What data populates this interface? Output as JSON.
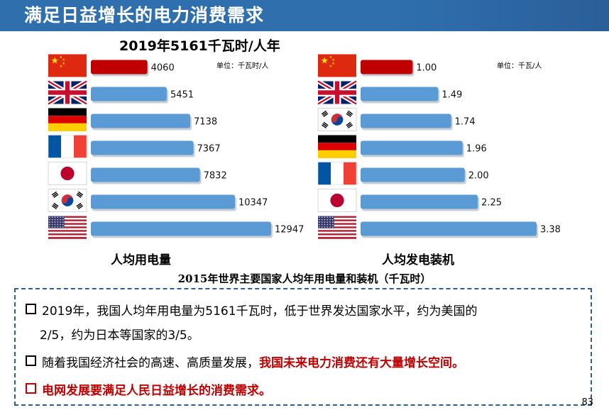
{
  "header": {
    "title": "满足日益增长的电力消费需求"
  },
  "headline": "2019年5161千瓦时/人年",
  "chart_data": [
    {
      "type": "bar",
      "orientation": "horizontal",
      "title": "人均用电量",
      "unit_label": "单位：千瓦时/人",
      "categories": [
        "中国",
        "英国",
        "德国",
        "法国",
        "日本",
        "韩国",
        "美国"
      ],
      "flags": [
        "cn-flag",
        "uk-flag",
        "de-flag",
        "fr-flag",
        "jp-flag",
        "kr-flag",
        "us-flag"
      ],
      "value_labels": [
        "4060",
        "5451",
        "7138",
        "7367",
        "7832",
        "10347",
        "12947"
      ],
      "values": [
        4060,
        5451,
        7138,
        7367,
        7832,
        10347,
        12947
      ],
      "highlight_index": 0,
      "colors": {
        "highlight": "#c00000",
        "bar": "#5b9bd5"
      },
      "xlim": [
        0,
        12947
      ]
    },
    {
      "type": "bar",
      "orientation": "horizontal",
      "title": "人均发电装机",
      "unit_label": "单位：千瓦/人",
      "categories": [
        "中国",
        "英国",
        "韩国",
        "德国",
        "法国",
        "日本",
        "美国"
      ],
      "flags": [
        "cn-flag",
        "uk-flag",
        "kr-flag",
        "de-flag",
        "fr-flag",
        "jp-flag",
        "us-flag"
      ],
      "value_labels": [
        "1.00",
        "1.49",
        "1.74",
        "1.96",
        "2.00",
        "2.25",
        "3.38"
      ],
      "values": [
        1.0,
        1.49,
        1.74,
        1.96,
        2.0,
        2.25,
        3.38
      ],
      "highlight_index": 0,
      "colors": {
        "highlight": "#c00000",
        "bar": "#5b9bd5"
      },
      "xlim": [
        0,
        3.38
      ]
    }
  ],
  "caption": "2015年世界主要国家人均年用电量和装机（千瓦时）",
  "bullets": {
    "b1_line1": "2019年，我国人均年用电量为5161千瓦时，低于世界发达国家水平，约为美国的",
    "b1_line2": "2/5，约为日本等国家的3/5。",
    "b2_normal": "随着我国经济社会的高速、高质量发展，",
    "b2_red": "我国未来电力消费还有大量增长空间。",
    "b3_red": "电网发展要满足人民日益增长的消费需求。"
  },
  "page_number": "83"
}
